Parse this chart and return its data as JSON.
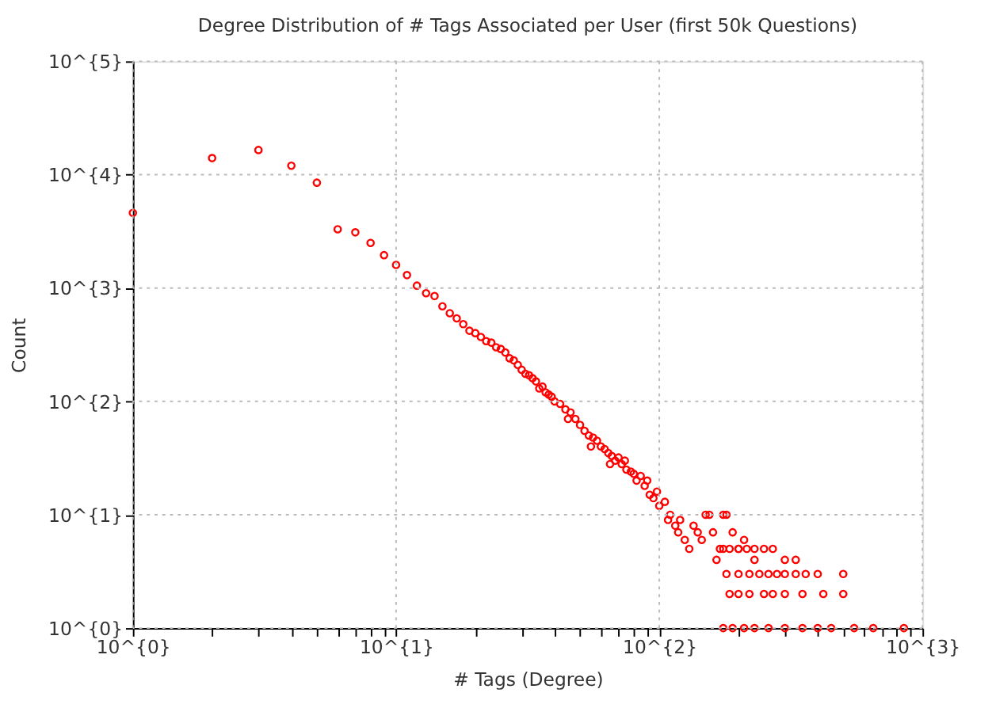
{
  "chart_data": {
    "type": "scatter",
    "title": "Degree Distribution of # Tags Associated per User (first 50k Questions)",
    "xlabel": "# Tags (Degree)",
    "ylabel": "Count",
    "log": "xy",
    "grid": true,
    "marker": "circle",
    "xlim": [
      1,
      1000
    ],
    "ylim": [
      1,
      100000
    ],
    "xticks": [
      {
        "value": 1,
        "label": "10^{0}"
      },
      {
        "value": 2,
        "label": null
      },
      {
        "value": 3,
        "label": null
      },
      {
        "value": 4,
        "label": null
      },
      {
        "value": 5,
        "label": null
      },
      {
        "value": 6,
        "label": null
      },
      {
        "value": 7,
        "label": null
      },
      {
        "value": 8,
        "label": null
      },
      {
        "value": 9,
        "label": null
      },
      {
        "value": 10,
        "label": "10^{1}"
      },
      {
        "value": 20,
        "label": null
      },
      {
        "value": 30,
        "label": null
      },
      {
        "value": 40,
        "label": null
      },
      {
        "value": 50,
        "label": null
      },
      {
        "value": 60,
        "label": null
      },
      {
        "value": 70,
        "label": null
      },
      {
        "value": 80,
        "label": null
      },
      {
        "value": 90,
        "label": null
      },
      {
        "value": 100,
        "label": "10^{2}"
      },
      {
        "value": 200,
        "label": null
      },
      {
        "value": 300,
        "label": null
      },
      {
        "value": 400,
        "label": null
      },
      {
        "value": 500,
        "label": null
      },
      {
        "value": 600,
        "label": null
      },
      {
        "value": 700,
        "label": null
      },
      {
        "value": 800,
        "label": null
      },
      {
        "value": 900,
        "label": null
      },
      {
        "value": 1000,
        "label": "10^{3}"
      }
    ],
    "yticks": [
      {
        "value": 1,
        "label": "10^{0}"
      },
      {
        "value": 10,
        "label": "10^{1}"
      },
      {
        "value": 100,
        "label": "10^{2}"
      },
      {
        "value": 1000,
        "label": "10^{3}"
      },
      {
        "value": 10000,
        "label": "10^{4}"
      },
      {
        "value": 100000,
        "label": "10^{5}"
      }
    ],
    "series": [
      {
        "color": "#ff0000",
        "x": [
          1,
          2,
          3,
          4,
          5,
          6,
          7,
          8,
          9,
          10,
          11,
          12,
          13,
          14,
          15,
          16,
          17,
          18,
          19,
          20,
          21,
          22,
          23,
          24,
          25,
          26,
          27,
          28,
          29,
          30,
          31,
          32,
          33,
          34,
          35,
          36,
          37,
          38,
          39,
          40,
          42,
          44,
          45,
          46,
          48,
          50,
          52,
          54,
          55,
          56,
          58,
          60,
          62,
          64,
          65,
          66,
          68,
          70,
          72,
          74,
          75,
          78,
          80,
          82,
          85,
          88,
          90,
          92,
          95,
          98,
          100,
          105,
          108,
          110,
          115,
          118,
          120,
          125,
          130,
          135,
          140,
          145,
          150,
          155,
          160,
          165,
          170,
          175,
          180,
          190,
          200,
          210,
          230,
          175,
          185,
          200,
          215,
          230,
          250,
          270,
          300,
          330,
          400,
          180,
          200,
          220,
          240,
          260,
          280,
          300,
          330,
          360,
          500,
          185,
          200,
          220,
          250,
          270,
          300,
          350,
          420,
          500,
          175,
          190,
          210,
          230,
          260,
          300,
          350,
          400,
          450,
          550,
          650,
          850
        ],
        "values": [
          4600,
          14000,
          16500,
          12000,
          8500,
          3300,
          3100,
          2500,
          1950,
          1600,
          1300,
          1050,
          900,
          850,
          690,
          600,
          540,
          480,
          420,
          400,
          370,
          340,
          330,
          300,
          290,
          270,
          240,
          230,
          210,
          190,
          175,
          170,
          160,
          150,
          130,
          135,
          120,
          115,
          110,
          100,
          95,
          85,
          70,
          80,
          70,
          62,
          55,
          50,
          40,
          48,
          45,
          40,
          38,
          35,
          28,
          33,
          30,
          32,
          28,
          30,
          25,
          24,
          23,
          20,
          22,
          18,
          20,
          15,
          14,
          16,
          12,
          13,
          9,
          10,
          8,
          7,
          9,
          6,
          5,
          8,
          7,
          6,
          10,
          10,
          7,
          4,
          5,
          10,
          10,
          7,
          5,
          6,
          4,
          5,
          5,
          5,
          5,
          5,
          5,
          5,
          4,
          4,
          3,
          3,
          3,
          3,
          3,
          3,
          3,
          3,
          3,
          3,
          3,
          2,
          2,
          2,
          2,
          2,
          2,
          2,
          2,
          2,
          1,
          1,
          1,
          1,
          1,
          1,
          1,
          1,
          1,
          1,
          1,
          1
        ]
      }
    ]
  }
}
